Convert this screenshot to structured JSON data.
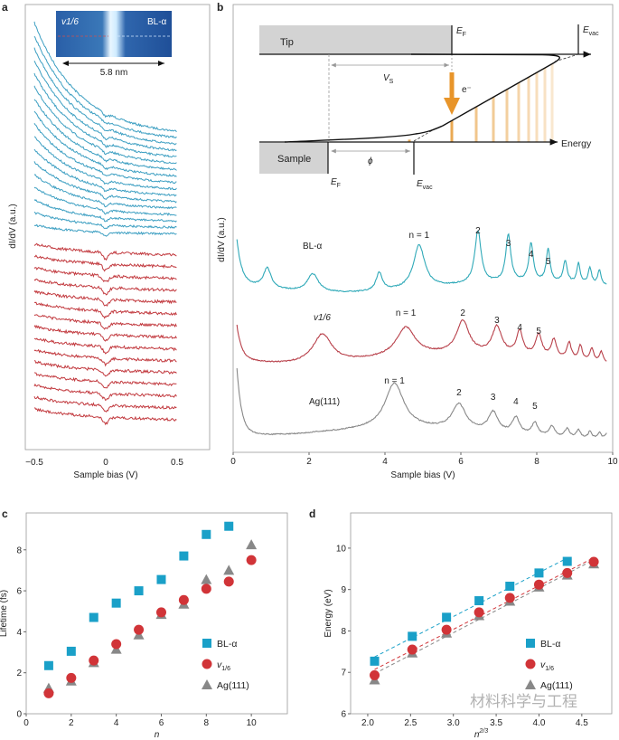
{
  "panels": {
    "a": {
      "letter": "a",
      "ylabel": "dI/dV (a.u.)",
      "xlabel": "Sample bias (V)",
      "xticks": [
        "−0.5",
        "0",
        "0.5"
      ],
      "xlim": [
        -0.55,
        0.55
      ],
      "inset": {
        "left_label": "v1/6",
        "right_label": "BL-α",
        "scale_label": "5.8 nm"
      },
      "trace_counts": {
        "blue": 17,
        "red": 15
      },
      "colors": {
        "blue": "#3d9fc2",
        "red": "#c23a3f"
      }
    },
    "b": {
      "letter": "b",
      "diagram": {
        "tip": "Tip",
        "sample": "Sample",
        "ef": "E",
        "ef_sub": "F",
        "evac": "E",
        "evac_sub": "vac",
        "vs": "V",
        "vs_sub": "S",
        "phi": "ϕ",
        "electron": "e⁻",
        "energy": "Energy"
      },
      "ylabel": "dI/dV (a.u.)",
      "xlabel": "Sample bias (V)",
      "xticks": [
        "0",
        "2",
        "4",
        "6",
        "8",
        "10"
      ],
      "xlim": [
        0,
        10
      ]
    },
    "c": {
      "letter": "c"
    },
    "d": {
      "letter": "d"
    }
  },
  "chart_data": [
    {
      "type": "line",
      "panel": "b",
      "xlabel": "Sample bias (V)",
      "ylabel": "dI/dV (a.u.)",
      "xlim": [
        0,
        10
      ],
      "series": [
        {
          "name": "BL-α",
          "color": "#2fa9b8",
          "peaks_V": [
            0.9,
            2.1,
            3.85,
            4.9,
            6.45,
            7.25,
            7.85,
            8.3,
            8.75,
            9.1,
            9.4,
            9.65
          ],
          "labels": [
            {
              "text": "n = 1",
              "x": 4.9
            },
            {
              "text": "2",
              "x": 6.45
            },
            {
              "text": "3",
              "x": 7.25
            },
            {
              "text": "4",
              "x": 7.85
            },
            {
              "text": "5",
              "x": 8.3
            }
          ]
        },
        {
          "name": "v1/6",
          "color": "#b8404a",
          "peaks_V": [
            2.35,
            4.55,
            6.05,
            6.95,
            7.55,
            8.05,
            8.45,
            8.85,
            9.15,
            9.45,
            9.7
          ],
          "labels": [
            {
              "text": "n = 1",
              "x": 4.55
            },
            {
              "text": "2",
              "x": 6.05
            },
            {
              "text": "3",
              "x": 6.95
            },
            {
              "text": "4",
              "x": 7.55
            },
            {
              "text": "5",
              "x": 8.05
            }
          ]
        },
        {
          "name": "Ag(111)",
          "color": "#888888",
          "peaks_V": [
            4.25,
            5.95,
            6.85,
            7.45,
            7.95,
            8.4,
            8.8,
            9.1,
            9.4,
            9.65,
            9.85
          ],
          "labels": [
            {
              "text": "n = 1",
              "x": 4.25
            },
            {
              "text": "2",
              "x": 5.95
            },
            {
              "text": "3",
              "x": 6.85
            },
            {
              "text": "4",
              "x": 7.45
            },
            {
              "text": "5",
              "x": 7.95
            }
          ]
        }
      ]
    },
    {
      "type": "scatter",
      "panel": "c",
      "xlabel": "n",
      "ylabel": "Lifetime (fs)",
      "xlim": [
        0,
        11.6
      ],
      "ylim": [
        0,
        9.8
      ],
      "xticks": [
        0,
        2,
        4,
        6,
        8,
        10
      ],
      "yticks": [
        0,
        2,
        4,
        6,
        8
      ],
      "legend": "center-right",
      "series": [
        {
          "name": "BL-α",
          "marker": "square",
          "color": "#1aa0c8",
          "x": [
            1,
            2,
            3,
            4,
            5,
            6,
            7,
            8,
            9
          ],
          "y": [
            2.35,
            3.05,
            4.7,
            5.4,
            6.0,
            6.55,
            7.7,
            8.75,
            9.15
          ]
        },
        {
          "name": "v1/6",
          "marker": "circle",
          "color": "#d13438",
          "x": [
            1,
            2,
            3,
            4,
            5,
            6,
            7,
            8,
            9,
            10
          ],
          "y": [
            1.0,
            1.75,
            2.6,
            3.4,
            4.1,
            4.95,
            5.55,
            6.1,
            6.45,
            7.5
          ]
        },
        {
          "name": "Ag(111)",
          "marker": "triangle",
          "color": "#888888",
          "x": [
            1,
            2,
            3,
            4,
            5,
            6,
            7,
            8,
            9,
            10
          ],
          "y": [
            1.25,
            1.6,
            2.5,
            3.15,
            3.85,
            4.85,
            5.35,
            6.55,
            7.0,
            8.25
          ]
        }
      ]
    },
    {
      "type": "scatter",
      "panel": "d",
      "xlabel": "n2/3",
      "ylabel": "Energy (eV)",
      "xlim": [
        1.8,
        4.85
      ],
      "ylim": [
        6,
        10.85
      ],
      "xticks": [
        2.0,
        2.5,
        3.0,
        3.5,
        4.0,
        4.5
      ],
      "xtick_labels": [
        "2.0",
        "2.5",
        "3.0",
        "3.5",
        "4.0",
        "4.5"
      ],
      "yticks": [
        6,
        7,
        8,
        9,
        10
      ],
      "legend": "center-right",
      "fit_lines": "dashed",
      "series": [
        {
          "name": "BL-α",
          "marker": "square",
          "color": "#1aa0c8",
          "x": [
            2.08,
            2.52,
            2.92,
            3.3,
            3.66,
            4.0,
            4.33
          ],
          "y": [
            7.27,
            7.87,
            8.33,
            8.73,
            9.08,
            9.4,
            9.68
          ]
        },
        {
          "name": "v1/6",
          "marker": "circle",
          "color": "#d13438",
          "x": [
            2.08,
            2.52,
            2.92,
            3.3,
            3.66,
            4.0,
            4.33,
            4.64
          ],
          "y": [
            6.93,
            7.55,
            8.03,
            8.45,
            8.8,
            9.12,
            9.4,
            9.67
          ]
        },
        {
          "name": "Ag(111)",
          "marker": "triangle",
          "color": "#888888",
          "x": [
            2.08,
            2.52,
            2.92,
            3.3,
            3.66,
            4.0,
            4.33,
            4.64
          ],
          "y": [
            6.82,
            7.47,
            7.95,
            8.37,
            8.72,
            9.06,
            9.35,
            9.62
          ]
        }
      ]
    }
  ],
  "watermark": "材料科学与工程"
}
